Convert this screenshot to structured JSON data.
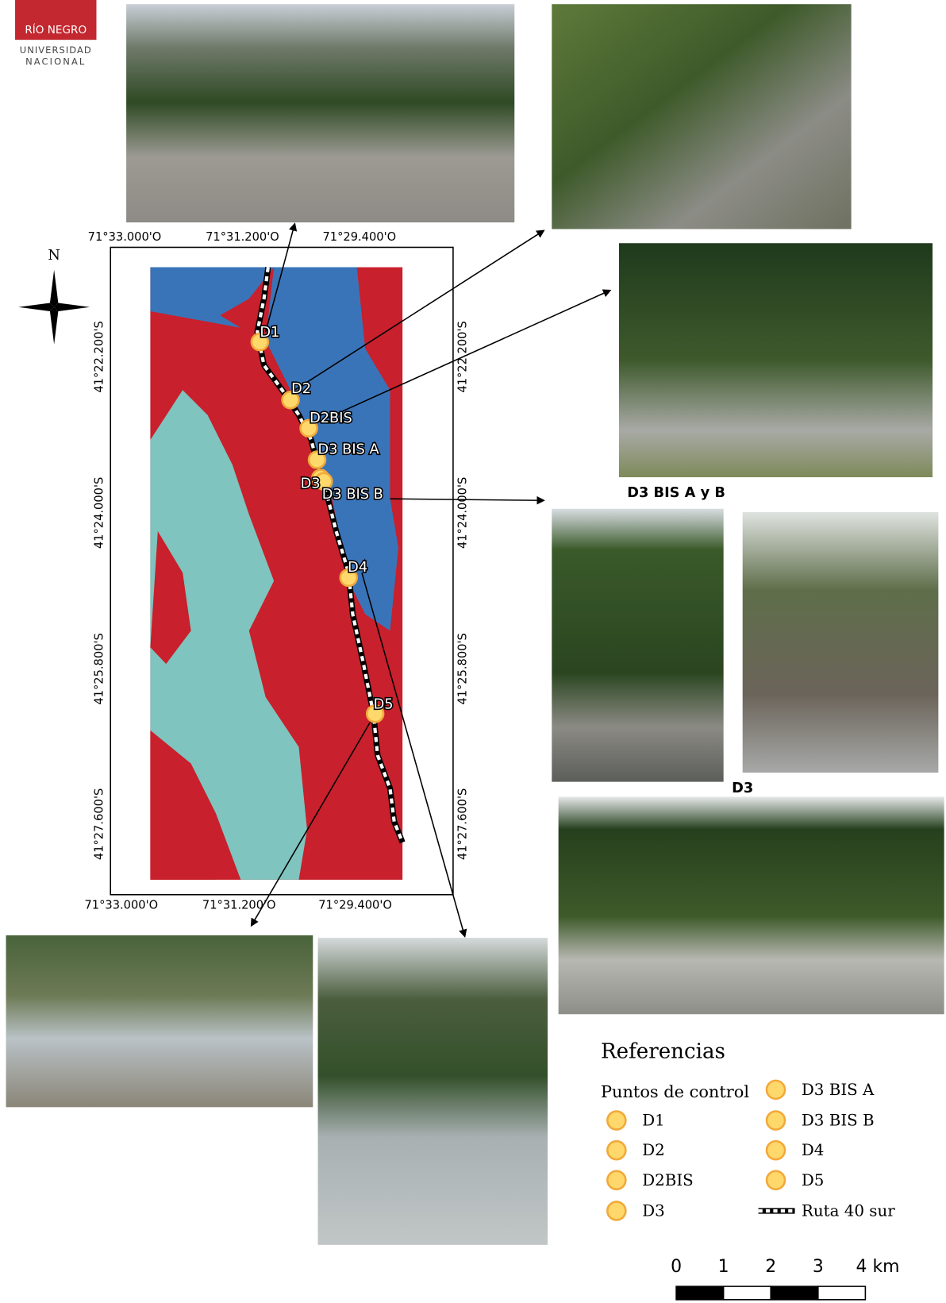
{
  "logo": {
    "line1": "RÍO NEGRO",
    "line2": "UNIVERSIDAD",
    "line3": "NACIONAL"
  },
  "north": "N",
  "map": {
    "x_labels_top": [
      "71°33.000'O",
      "71°31.200'O",
      "71°29.400'O"
    ],
    "x_labels_bottom": [
      "71°33.000'O",
      "71°31.200'O",
      "71°29.400'O"
    ],
    "y_labels_left": [
      "41°22.200'S",
      "41°24.000'S",
      "41°25.800'S",
      "41°27.600'S"
    ],
    "y_labels_right": [
      "41°22.200'S",
      "41°24.000'S",
      "41°25.800'S",
      "41°27.600'S"
    ],
    "points": [
      "D1",
      "D2",
      "D2BIS",
      "D3 BIS A",
      "D3",
      "D3 BIS B",
      "D4",
      "D5"
    ]
  },
  "captions": [
    "D3 BIS A y B",
    "D3"
  ],
  "legend": {
    "title": "Referencias",
    "subtitle": "Puntos de control",
    "items": [
      "D1",
      "D2",
      "D2BIS",
      "D3",
      "D3 BIS A",
      "D3 BIS B",
      "D4",
      "D5"
    ],
    "route": "Ruta 40 sur"
  },
  "scale": {
    "ticks": [
      0,
      1,
      2,
      3,
      {
        "value": 4,
        "label": "4 km"
      }
    ]
  }
}
